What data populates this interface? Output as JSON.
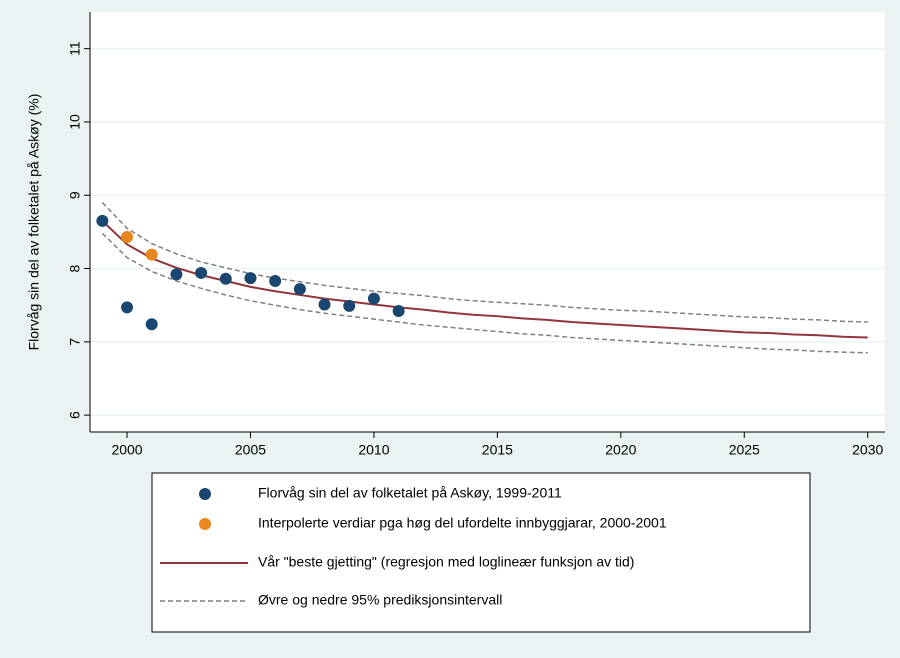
{
  "chart_data": {
    "type": "line",
    "y_label": "Florvåg sin del av folketalet på Askøy (%)",
    "x": [
      1999,
      2000,
      2001,
      2002,
      2003,
      2004,
      2005,
      2006,
      2007,
      2008,
      2009,
      2010,
      2011,
      2012,
      2013,
      2014,
      2015,
      2016,
      2017,
      2018,
      2019,
      2020,
      2021,
      2022,
      2023,
      2024,
      2025,
      2026,
      2027,
      2028,
      2029,
      2030
    ],
    "xlim": [
      1998.5,
      2030.7
    ],
    "xticks": [
      2000,
      2005,
      2010,
      2015,
      2020,
      2025,
      2030
    ],
    "ylim": [
      5.77,
      11.5
    ],
    "yticks": [
      6,
      7,
      8,
      9,
      10,
      11
    ],
    "grid": true,
    "series": [
      {
        "name": "Florvåg sin del av folketalet på Askøy, 1999-2011",
        "type": "scatter",
        "color": "#1a476f",
        "values": [
          8.65,
          7.47,
          7.24,
          7.92,
          7.94,
          7.86,
          7.87,
          7.83,
          7.72,
          7.51,
          7.49,
          7.59,
          7.42,
          null,
          null,
          null,
          null,
          null,
          null,
          null,
          null,
          null,
          null,
          null,
          null,
          null,
          null,
          null,
          null,
          null,
          null,
          null
        ]
      },
      {
        "name": "Interpolerte verdiar pga høg del ufordelte innbyggjarar, 2000-2001",
        "type": "scatter",
        "color": "#e8871e",
        "values": [
          null,
          8.43,
          8.19,
          null,
          null,
          null,
          null,
          null,
          null,
          null,
          null,
          null,
          null,
          null,
          null,
          null,
          null,
          null,
          null,
          null,
          null,
          null,
          null,
          null,
          null,
          null,
          null,
          null,
          null,
          null,
          null,
          null
        ]
      },
      {
        "name": "Vår \"beste gjetting\" (regresjon med loglineær funksjon av tid)",
        "type": "line",
        "color": "#90353b",
        "values": [
          8.65,
          8.33,
          8.14,
          8.01,
          7.91,
          7.83,
          7.75,
          7.69,
          7.64,
          7.59,
          7.55,
          7.51,
          7.47,
          7.44,
          7.4,
          7.37,
          7.35,
          7.32,
          7.3,
          7.27,
          7.25,
          7.23,
          7.21,
          7.19,
          7.17,
          7.15,
          7.13,
          7.12,
          7.1,
          7.09,
          7.07,
          7.06
        ]
      },
      {
        "name": "Øvre og nedre 95% prediksjonsintervall",
        "type": "band",
        "color": "#808080",
        "upper": [
          8.9,
          8.55,
          8.34,
          8.2,
          8.09,
          8.01,
          7.93,
          7.87,
          7.82,
          7.77,
          7.73,
          7.69,
          7.66,
          7.63,
          7.59,
          7.56,
          7.54,
          7.52,
          7.5,
          7.47,
          7.45,
          7.43,
          7.42,
          7.4,
          7.38,
          7.36,
          7.34,
          7.33,
          7.31,
          7.3,
          7.28,
          7.27
        ],
        "lower": [
          8.48,
          8.15,
          7.96,
          7.83,
          7.73,
          7.64,
          7.56,
          7.5,
          7.44,
          7.39,
          7.35,
          7.31,
          7.27,
          7.23,
          7.2,
          7.17,
          7.14,
          7.11,
          7.09,
          7.06,
          7.04,
          7.02,
          7.0,
          6.98,
          6.96,
          6.94,
          6.92,
          6.9,
          6.89,
          6.87,
          6.86,
          6.85
        ]
      }
    ]
  }
}
